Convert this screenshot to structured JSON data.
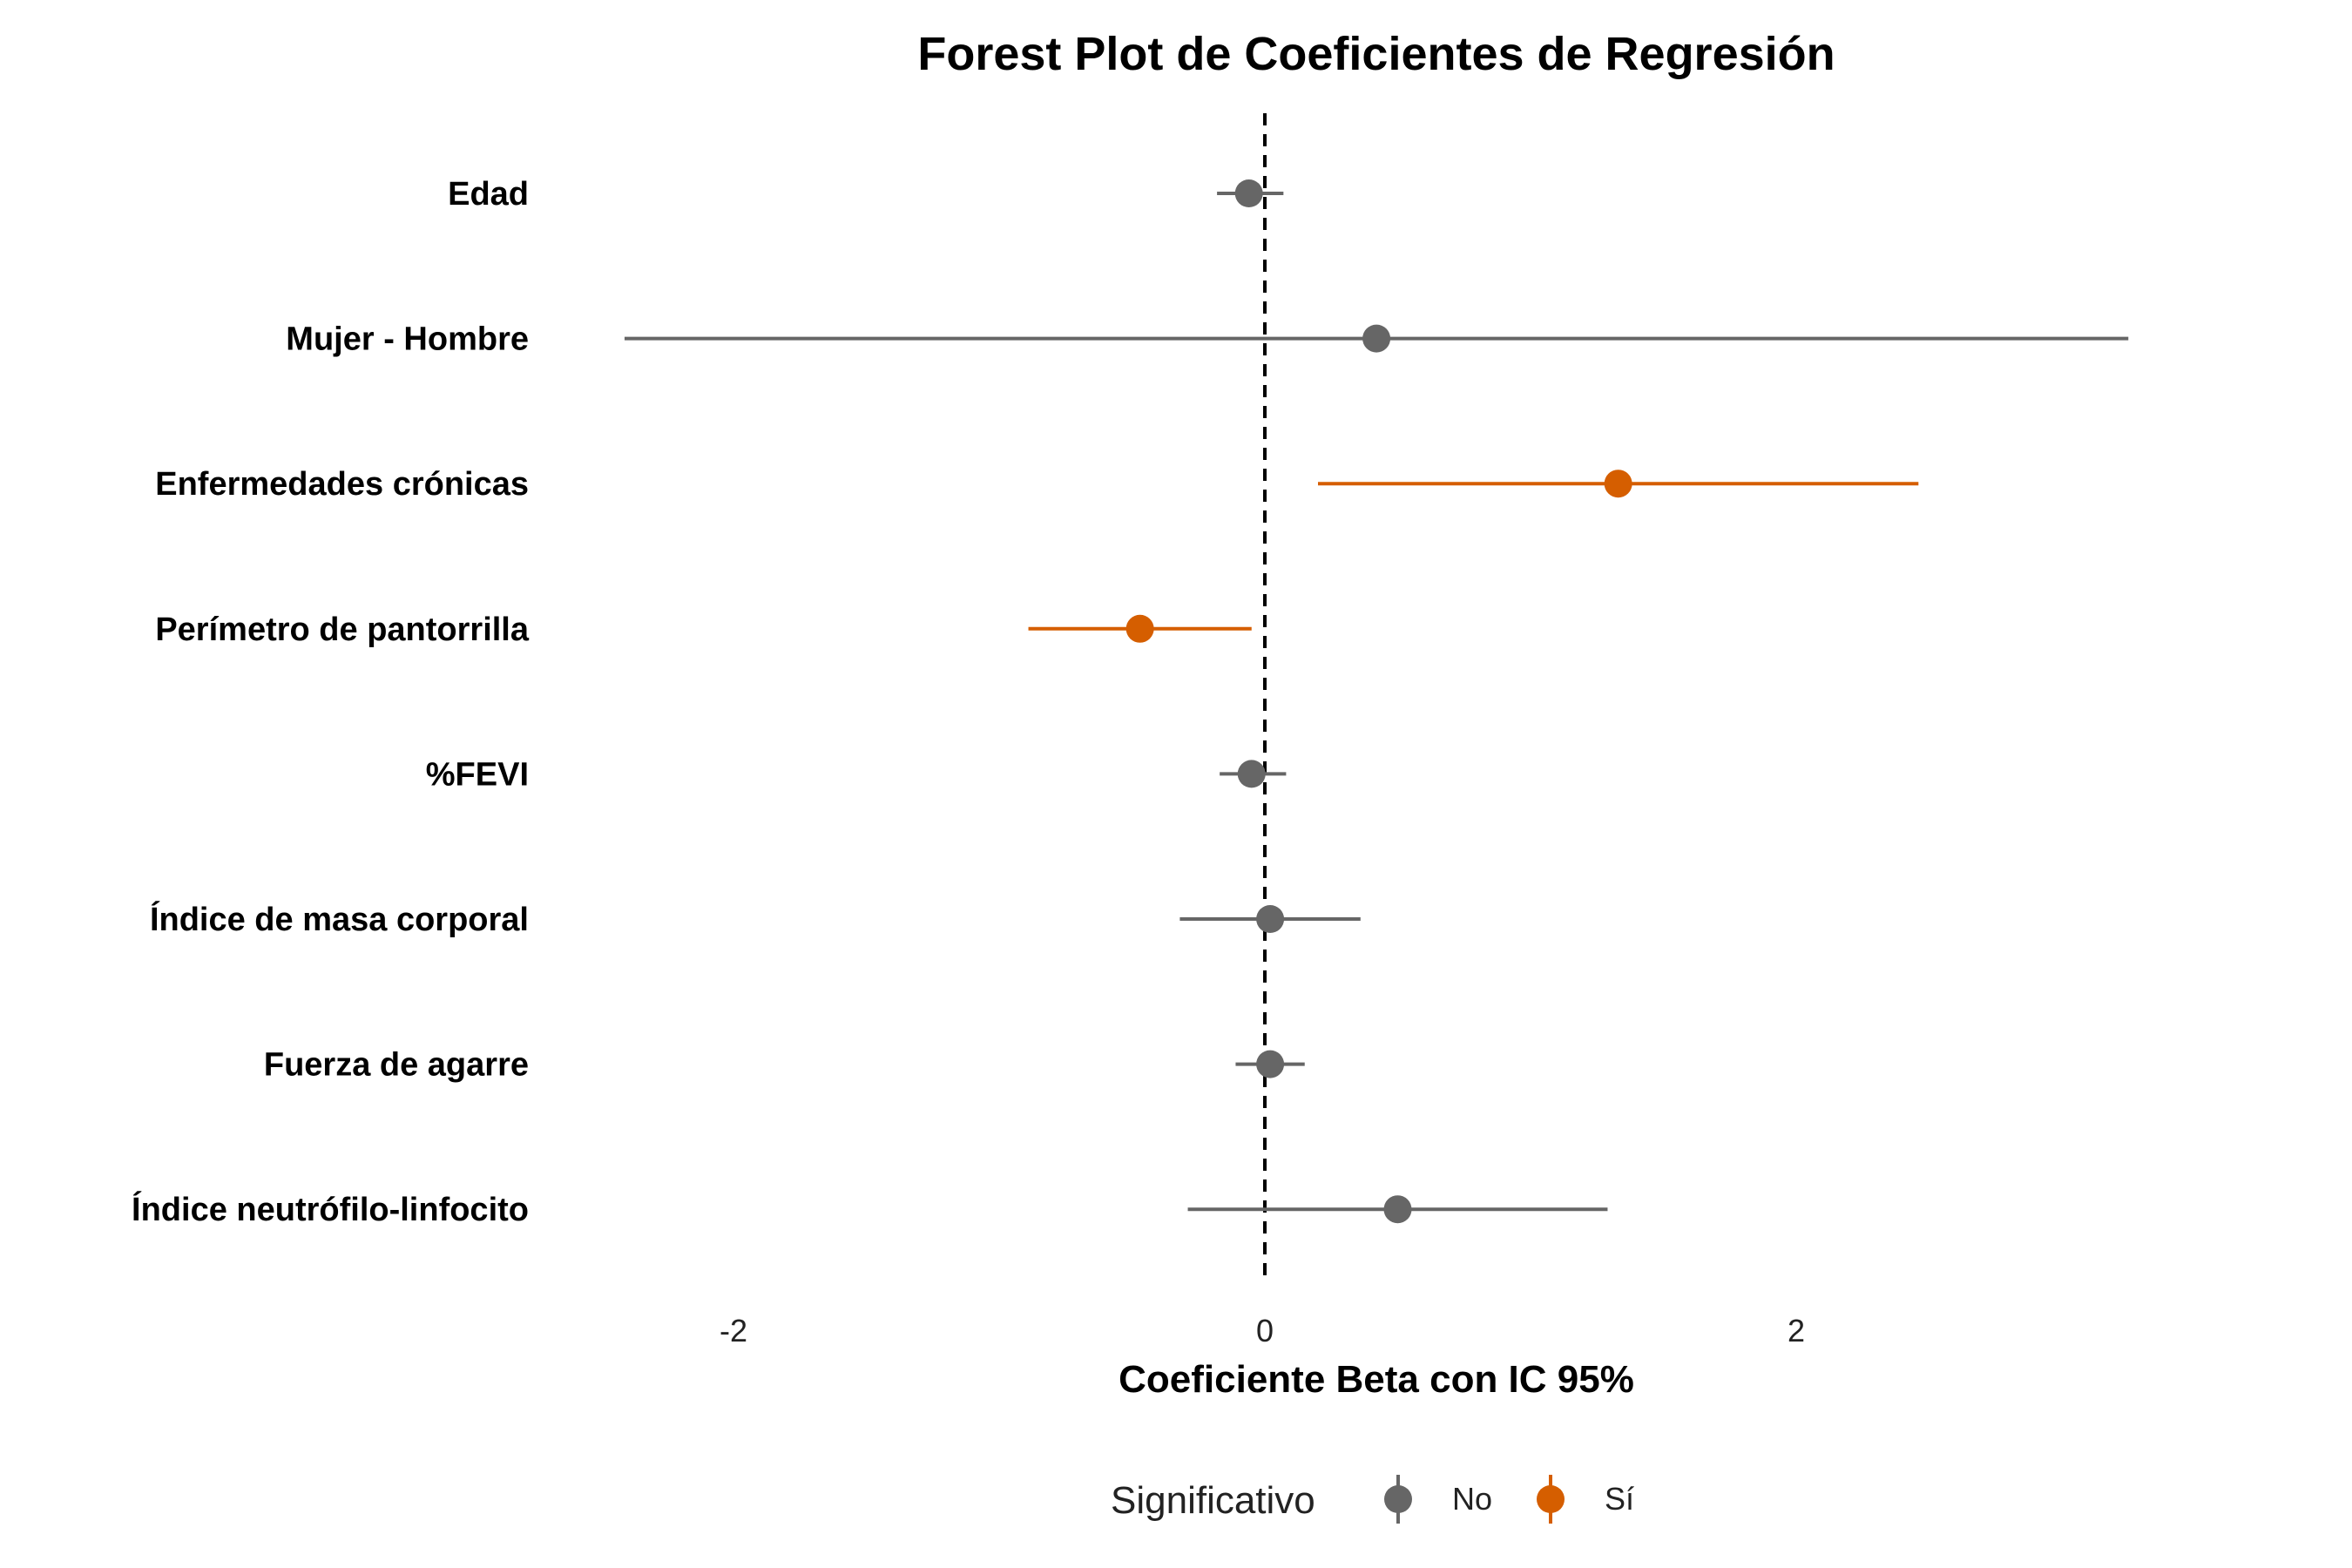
{
  "chart_data": {
    "type": "forest",
    "title": "Forest Plot de Coeficientes de Regresión",
    "xlabel": "Coeficiente Beta con IC 95%",
    "ylabel": "",
    "xlim": [
      -2.5,
      3.3
    ],
    "xticks": [
      "-2",
      "0",
      "2"
    ],
    "xtick_values": [
      -2,
      0,
      2
    ],
    "reference_line": 0,
    "grid": false,
    "legend_position": "bottom",
    "legend": {
      "title": "Significativo",
      "items": [
        {
          "label": "No",
          "color": "#666666"
        },
        {
          "label": "Sí",
          "color": "#D55E00"
        }
      ]
    },
    "rows": [
      {
        "label": "Edad",
        "estimate": -0.06,
        "lower": -0.18,
        "upper": 0.07,
        "significant": "No"
      },
      {
        "label": "Mujer - Hombre",
        "estimate": 0.42,
        "lower": -2.41,
        "upper": 3.25,
        "significant": "No"
      },
      {
        "label": "Enfermedades crónicas",
        "estimate": 1.33,
        "lower": 0.2,
        "upper": 2.46,
        "significant": "Sí"
      },
      {
        "label": "Perímetro de pantorrilla",
        "estimate": -0.47,
        "lower": -0.89,
        "upper": -0.05,
        "significant": "Sí"
      },
      {
        "label": "%FEVI",
        "estimate": -0.05,
        "lower": -0.17,
        "upper": 0.08,
        "significant": "No"
      },
      {
        "label": "Índice de masa corporal",
        "estimate": 0.02,
        "lower": -0.32,
        "upper": 0.36,
        "significant": "No"
      },
      {
        "label": "Fuerza de agarre",
        "estimate": 0.02,
        "lower": -0.11,
        "upper": 0.15,
        "significant": "No"
      },
      {
        "label": "Índice neutrófilo-linfocito",
        "estimate": 0.5,
        "lower": -0.29,
        "upper": 1.29,
        "significant": "No"
      }
    ]
  }
}
